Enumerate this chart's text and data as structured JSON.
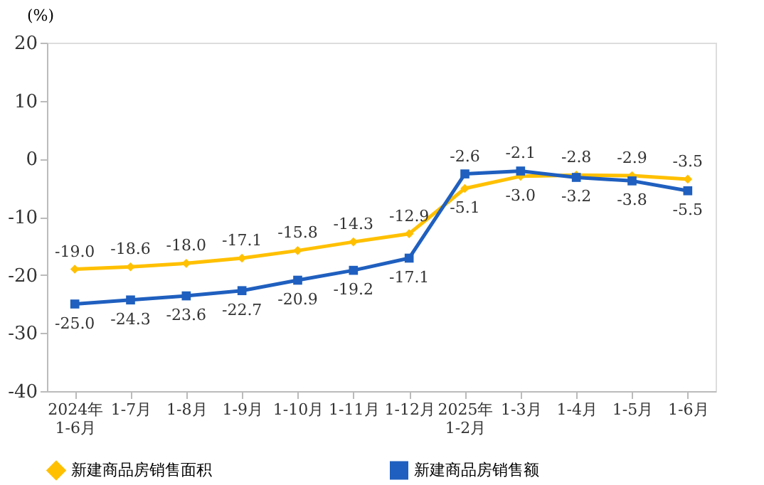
{
  "chart_data": {
    "type": "line",
    "ylabel": "(%)",
    "categories": [
      "2024年\n1-6月",
      "1-7月",
      "1-8月",
      "1-9月",
      "1-10月",
      "1-11月",
      "1-12月",
      "2025年\n1-2月",
      "1-3月",
      "1-4月",
      "1-5月",
      "1-6月"
    ],
    "series": [
      {
        "name": "新建商品房销售面积",
        "color": "#ffc000",
        "marker": "diamond",
        "values": [
          -19.0,
          -18.6,
          -18.0,
          -17.1,
          -15.8,
          -14.3,
          -12.9,
          -5.1,
          -3.0,
          -2.8,
          -2.9,
          -3.5
        ],
        "value_labels": [
          "-19.0",
          "-18.6",
          "-18.0",
          "-17.1",
          "-15.8",
          "-14.3",
          "-12.9",
          "-5.1",
          "-3.0",
          "-2.8",
          "-2.9",
          "-3.5"
        ]
      },
      {
        "name": "新建商品房销售额",
        "color": "#1f5fbf",
        "marker": "square",
        "values": [
          -25.0,
          -24.3,
          -23.6,
          -22.7,
          -20.9,
          -19.2,
          -17.1,
          -2.6,
          -2.1,
          -3.2,
          -3.8,
          -5.5
        ],
        "value_labels": [
          "-25.0",
          "-24.3",
          "-23.6",
          "-22.7",
          "-20.9",
          "-19.2",
          "-17.1",
          "-2.6",
          "-2.1",
          "-3.2",
          "-3.8",
          "-5.5"
        ]
      }
    ],
    "ylim": [
      -40,
      20
    ],
    "yticks": [
      -40,
      -30,
      -20,
      -10,
      0,
      10,
      20
    ],
    "grid": false,
    "legend": "bottom",
    "line_style": "solid"
  }
}
